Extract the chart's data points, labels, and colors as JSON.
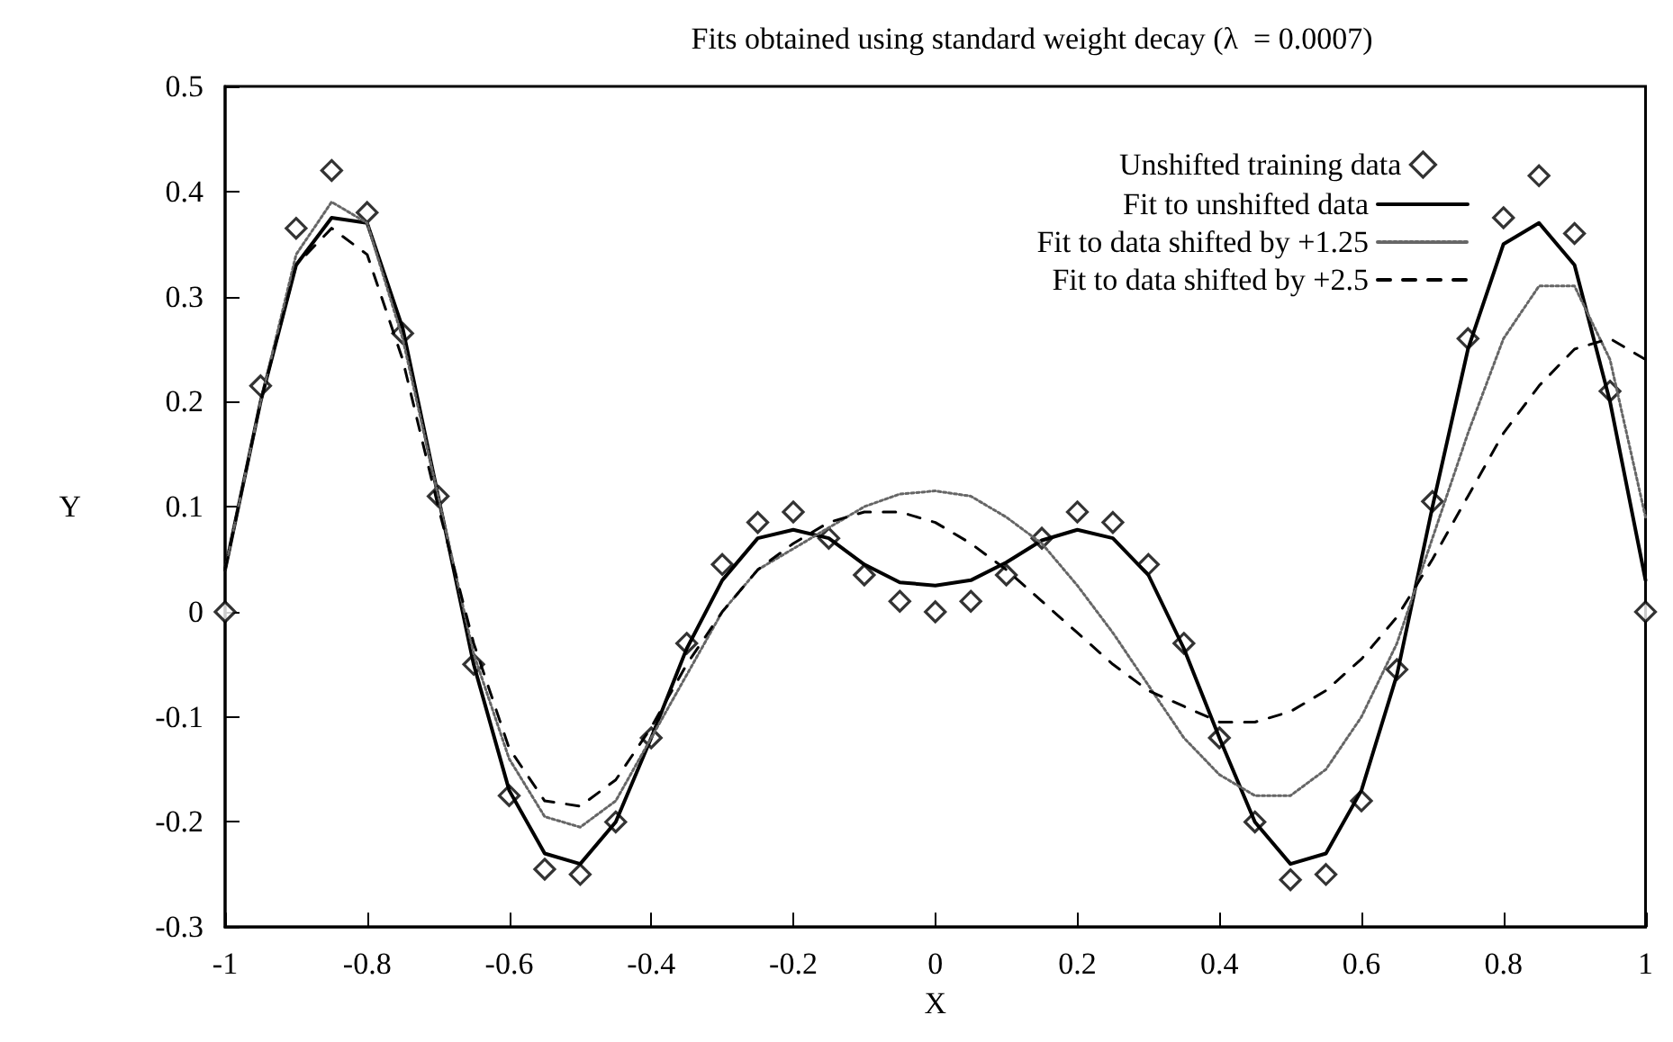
{
  "chart_data": {
    "type": "line",
    "title": "Fits obtained using standard weight decay (λ  = 0.0007)",
    "xlabel": "X",
    "ylabel": "Y",
    "x": [
      -1,
      -0.95,
      -0.9,
      -0.85,
      -0.8,
      -0.75,
      -0.7,
      -0.65,
      -0.6,
      -0.55,
      -0.5,
      -0.45,
      -0.4,
      -0.35,
      -0.3,
      -0.25,
      -0.2,
      -0.15,
      -0.1,
      -0.05,
      0,
      0.05,
      0.1,
      0.15,
      0.2,
      0.25,
      0.3,
      0.35,
      0.4,
      0.45,
      0.5,
      0.55,
      0.6,
      0.65,
      0.7,
      0.75,
      0.8,
      0.85,
      0.9,
      0.95,
      1
    ],
    "series": [
      {
        "name": "Unshifted training data",
        "type": "scatter",
        "marker": "diamond",
        "color": "#000000",
        "values": [
          0,
          0.215,
          0.365,
          0.42,
          0.38,
          0.265,
          0.11,
          -0.05,
          -0.175,
          -0.245,
          -0.25,
          -0.2,
          -0.12,
          -0.03,
          0.045,
          0.085,
          0.095,
          0.07,
          0.035,
          0.01,
          0,
          0.01,
          0.035,
          0.07,
          0.095,
          0.085,
          0.045,
          -0.03,
          -0.12,
          -0.2,
          -0.255,
          -0.25,
          -0.18,
          -0.055,
          0.105,
          0.26,
          0.375,
          0.415,
          0.36,
          0.21,
          0
        ]
      },
      {
        "name": "Fit to unshifted data",
        "type": "line",
        "line_style": "solid",
        "color": "#000000",
        "values": [
          0.04,
          0.2,
          0.33,
          0.375,
          0.37,
          0.27,
          0.11,
          -0.05,
          -0.17,
          -0.23,
          -0.24,
          -0.2,
          -0.12,
          -0.035,
          0.03,
          0.07,
          0.078,
          0.07,
          0.045,
          0.028,
          0.025,
          0.03,
          0.047,
          0.068,
          0.078,
          0.07,
          0.035,
          -0.035,
          -0.12,
          -0.2,
          -0.24,
          -0.23,
          -0.17,
          -0.06,
          0.1,
          0.25,
          0.35,
          0.37,
          0.33,
          0.2,
          0.03
        ]
      },
      {
        "name": "Fit to data shifted by +1.25",
        "type": "line",
        "line_style": "dotted",
        "color": "#666666",
        "values": [
          0.04,
          0.2,
          0.34,
          0.39,
          0.37,
          0.26,
          0.11,
          -0.04,
          -0.14,
          -0.195,
          -0.205,
          -0.18,
          -0.12,
          -0.06,
          0,
          0.04,
          0.06,
          0.08,
          0.1,
          0.112,
          0.115,
          0.11,
          0.09,
          0.065,
          0.025,
          -0.02,
          -0.07,
          -0.12,
          -0.155,
          -0.175,
          -0.175,
          -0.15,
          -0.1,
          -0.03,
          0.07,
          0.17,
          0.26,
          0.31,
          0.31,
          0.24,
          0.09
        ]
      },
      {
        "name": "Fit to data shifted by +2.5",
        "type": "line",
        "line_style": "dashed",
        "color": "#000000",
        "values": [
          0.04,
          0.2,
          0.33,
          0.365,
          0.34,
          0.24,
          0.1,
          -0.03,
          -0.13,
          -0.18,
          -0.185,
          -0.16,
          -0.11,
          -0.05,
          0,
          0.04,
          0.065,
          0.085,
          0.095,
          0.095,
          0.085,
          0.065,
          0.04,
          0.01,
          -0.02,
          -0.05,
          -0.075,
          -0.09,
          -0.105,
          -0.105,
          -0.095,
          -0.075,
          -0.045,
          -0.005,
          0.05,
          0.11,
          0.17,
          0.215,
          0.25,
          0.26,
          0.24
        ]
      }
    ],
    "xlim": [
      -1,
      1
    ],
    "xticks": [
      -1,
      -0.8,
      -0.6,
      -0.4,
      -0.2,
      0,
      0.2,
      0.4,
      0.6,
      0.8,
      1
    ],
    "ylim": [
      -0.3,
      0.5
    ],
    "yticks": [
      -0.3,
      -0.2,
      -0.1,
      0,
      0.1,
      0.2,
      0.3,
      0.4,
      0.5
    ],
    "grid": false,
    "legend": "top right"
  }
}
